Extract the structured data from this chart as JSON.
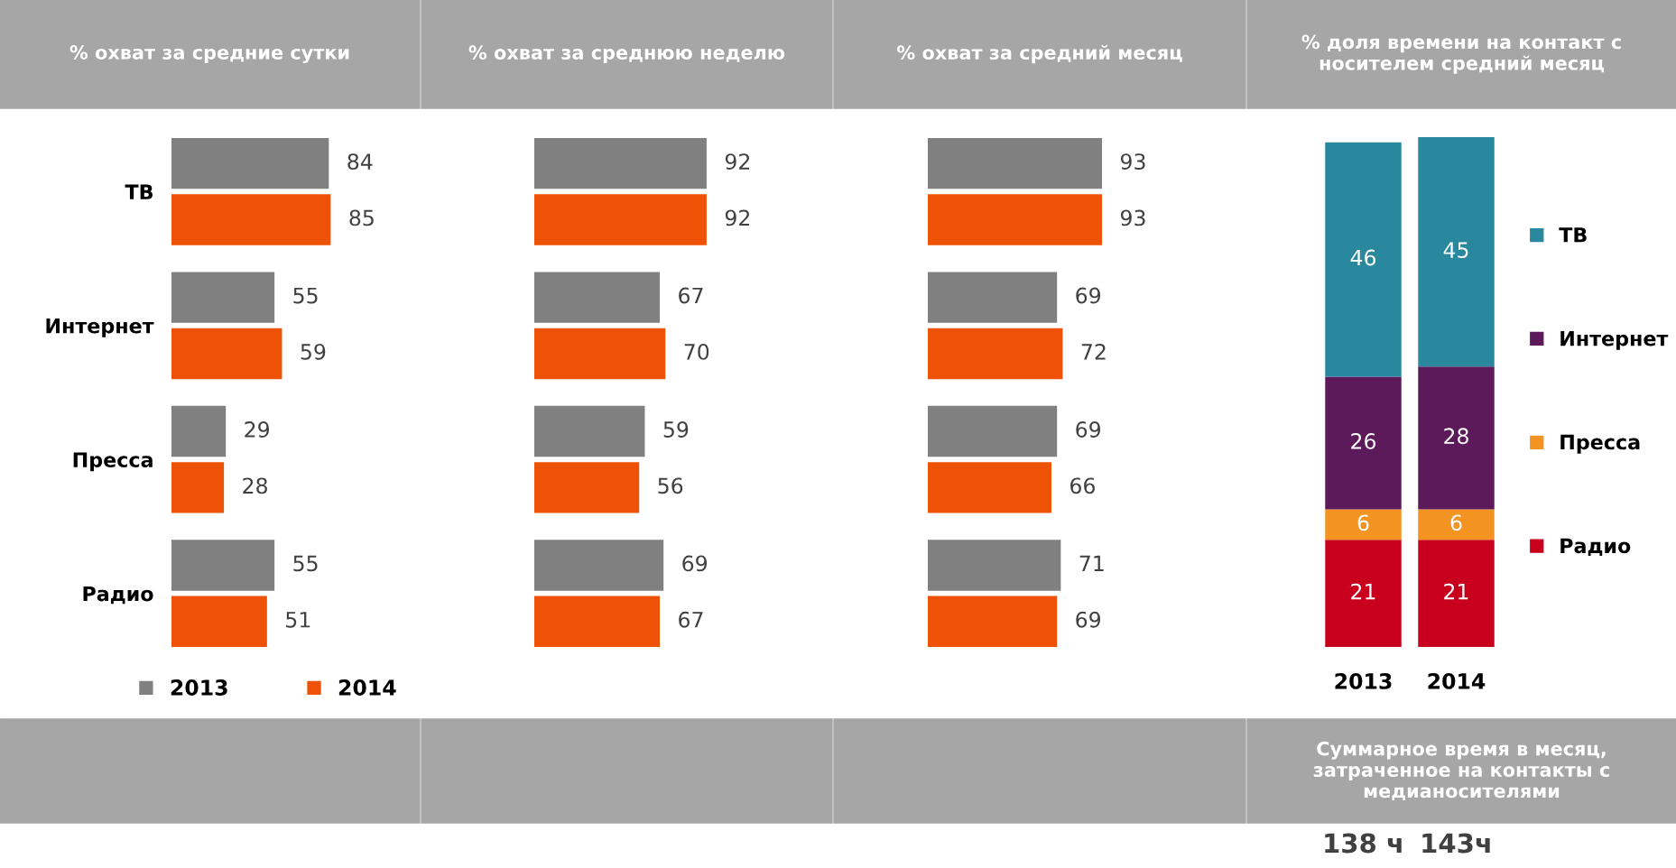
{
  "chart_data": [
    {
      "type": "bar",
      "orientation": "horizontal",
      "title": "% охват за средние сутки",
      "categories": [
        "ТВ",
        "Интернет",
        "Пресса",
        "Радио"
      ],
      "series": [
        {
          "name": "2013",
          "color": "#808080",
          "values": [
            84,
            55,
            29,
            55
          ]
        },
        {
          "name": "2014",
          "color": "#ee5206",
          "values": [
            85,
            59,
            28,
            51
          ]
        }
      ],
      "data_labels": true,
      "legend": "bottom",
      "tick_labels": "y",
      "marker": "square"
    },
    {
      "type": "bar",
      "orientation": "horizontal",
      "title": "% охват за среднюю неделю",
      "categories": [
        null,
        null,
        null,
        null
      ],
      "series": [
        {
          "color": "#808080",
          "values": [
            92,
            67,
            59,
            69
          ]
        },
        {
          "color": "#ee5206",
          "values": [
            92,
            70,
            56,
            67
          ]
        }
      ],
      "data_labels": true,
      "tick_labels": false
    },
    {
      "type": "bar",
      "orientation": "horizontal",
      "title": "% охват за средний месяц",
      "categories": [
        null,
        null,
        null,
        null
      ],
      "series": [
        {
          "color": "#808080",
          "values": [
            93,
            69,
            69,
            71
          ]
        },
        {
          "color": "#ee5206",
          "values": [
            93,
            72,
            66,
            69
          ]
        }
      ],
      "data_labels": true,
      "tick_labels": false
    },
    {
      "type": "bar",
      "stacked": true,
      "title": "% доля времени на контакт с носителем средний месяц",
      "categories": [
        "2013",
        "2014"
      ],
      "series": [
        {
          "name": "Радио",
          "color": "#c8001e",
          "values": [
            21,
            21
          ]
        },
        {
          "name": "Пресса",
          "color": "#f39322",
          "values": [
            6,
            6
          ]
        },
        {
          "name": "Интернет",
          "color": "#5c1a5a",
          "values": [
            26,
            28
          ]
        },
        {
          "name": "ТВ",
          "color": "#2a889e",
          "values": [
            46,
            45
          ]
        }
      ],
      "data_labels": true,
      "legend": "right",
      "tick_labels": "x",
      "marker": "square",
      "annotations": [
        "Суммарное время в месяц, затраченное на контакты с медианосителями",
        "138 ч",
        "143ч"
      ]
    }
  ]
}
